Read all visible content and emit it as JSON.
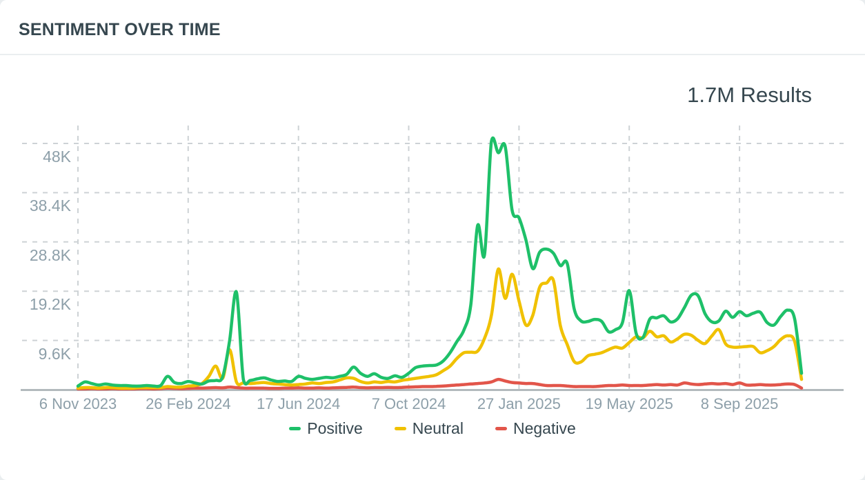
{
  "card": {
    "title": "SENTIMENT OVER TIME",
    "results_count": "1.7M Results"
  },
  "colors": {
    "positive": "#1ec069",
    "neutral": "#f0c100",
    "negative": "#e2554a",
    "title_text": "#36474f",
    "axis_label_text": "#8d9fa9",
    "gridline": "#cdd2d5",
    "axis_line": "#b3babd",
    "card_background": "#ffffff"
  },
  "chart_data": {
    "type": "line",
    "title": "SENTIMENT OVER TIME",
    "annotation": "1.7M Results",
    "interval": "weekly",
    "x_axis": {
      "tick_labels": [
        "6 Nov 2023",
        "26 Feb 2024",
        "17 Jun 2024",
        "7 Oct 2024",
        "27 Jan 2025",
        "19 May 2025",
        "8 Sep 2025"
      ],
      "tick_positions_weeks": [
        0,
        16,
        32,
        48,
        64,
        80,
        96
      ]
    },
    "y_axis": {
      "tick_labels": [
        "9.6K",
        "19.2K",
        "28.8K",
        "38.4K",
        "48K"
      ],
      "tick_values": [
        9600,
        19200,
        28800,
        38400,
        48000
      ],
      "range": [
        0,
        51600
      ]
    },
    "grid": {
      "show": true,
      "style": "dashed"
    },
    "legend": {
      "position": "bottom",
      "items": [
        {
          "label": "Positive",
          "color": "#1ec069"
        },
        {
          "label": "Neutral",
          "color": "#f0c100"
        },
        {
          "label": "Negative",
          "color": "#e2554a"
        }
      ]
    },
    "series": [
      {
        "name": "Positive",
        "color": "#1ec069",
        "values": [
          700,
          1500,
          1200,
          900,
          1100,
          900,
          800,
          800,
          700,
          700,
          800,
          700,
          800,
          2600,
          1400,
          1200,
          1600,
          1300,
          1100,
          1700,
          1800,
          2500,
          9500,
          19000,
          2000,
          1800,
          2100,
          2300,
          1900,
          1600,
          1700,
          1600,
          2600,
          2200,
          2000,
          2200,
          2400,
          2300,
          2600,
          3000,
          4400,
          3200,
          2600,
          3100,
          2400,
          2200,
          2700,
          2400,
          3200,
          4300,
          4600,
          4700,
          4800,
          5600,
          7200,
          9400,
          11600,
          16500,
          32000,
          26300,
          48400,
          46200,
          47400,
          35000,
          33500,
          29200,
          23600,
          26800,
          27400,
          26600,
          24200,
          24600,
          15800,
          13400,
          13300,
          13700,
          13300,
          11300,
          11700,
          13000,
          19300,
          11000,
          10200,
          13800,
          14000,
          14400,
          13200,
          13800,
          16000,
          18400,
          18300,
          14800,
          13200,
          13400,
          15300,
          14100,
          15200,
          14400,
          14900,
          15100,
          13100,
          12600,
          14300,
          15500,
          13800,
          3200
        ]
      },
      {
        "name": "Neutral",
        "color": "#f0c100",
        "values": [
          300,
          400,
          400,
          300,
          400,
          400,
          300,
          300,
          300,
          400,
          400,
          400,
          400,
          600,
          500,
          500,
          700,
          800,
          1200,
          2600,
          4600,
          2200,
          7800,
          1500,
          1300,
          1200,
          1300,
          1400,
          1200,
          1100,
          1000,
          900,
          1000,
          1100,
          1300,
          1200,
          1400,
          1500,
          1900,
          2300,
          2200,
          1600,
          1300,
          1500,
          1400,
          1600,
          1500,
          1800,
          2000,
          2200,
          2400,
          2600,
          2900,
          3700,
          4600,
          6100,
          7200,
          7300,
          7500,
          10000,
          14500,
          23500,
          17800,
          22500,
          17300,
          12600,
          14500,
          20000,
          20800,
          21300,
          12500,
          8800,
          5500,
          5400,
          6600,
          6900,
          7200,
          7800,
          8300,
          8100,
          9200,
          10300,
          10100,
          11400,
          10300,
          10500,
          9300,
          9900,
          10800,
          10600,
          9600,
          9000,
          10500,
          11700,
          8900,
          8300,
          8300,
          8400,
          8400,
          7200,
          7600,
          8400,
          9800,
          10500,
          9400,
          2000
        ]
      },
      {
        "name": "Negative",
        "color": "#e2554a",
        "values": [
          150,
          150,
          200,
          150,
          150,
          200,
          150,
          150,
          150,
          200,
          200,
          150,
          200,
          300,
          250,
          200,
          250,
          300,
          300,
          350,
          400,
          350,
          500,
          400,
          300,
          300,
          300,
          300,
          250,
          250,
          300,
          300,
          350,
          300,
          300,
          350,
          300,
          350,
          400,
          450,
          500,
          400,
          350,
          400,
          400,
          450,
          400,
          450,
          500,
          550,
          600,
          600,
          650,
          700,
          800,
          900,
          1000,
          1100,
          1200,
          1300,
          1500,
          2000,
          1700,
          1400,
          1300,
          1200,
          1200,
          1000,
          800,
          800,
          800,
          700,
          600,
          600,
          600,
          600,
          700,
          800,
          800,
          900,
          800,
          800,
          800,
          900,
          1000,
          900,
          1000,
          900,
          1300,
          1100,
          1000,
          1100,
          1200,
          1100,
          1200,
          1000,
          1300,
          900,
          900,
          1000,
          900,
          900,
          1000,
          1100,
          1000,
          300
        ]
      }
    ]
  }
}
